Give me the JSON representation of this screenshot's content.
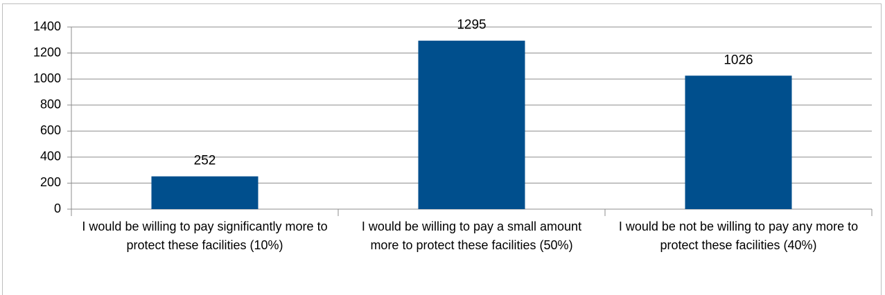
{
  "chart_data": {
    "type": "bar",
    "categories": [
      "I would be willing to pay significantly more to protect these facilities (10%)",
      "I would be willing to pay a small amount more to protect these facilities (50%)",
      "I would be not be willing to pay any more to protect these facilities (40%)"
    ],
    "values": [
      252,
      1295,
      1026
    ],
    "color": "#004f8d",
    "ylim": [
      0,
      1400
    ],
    "yticks": [
      0,
      200,
      400,
      600,
      800,
      1000,
      1200,
      1400
    ],
    "grid": true
  }
}
